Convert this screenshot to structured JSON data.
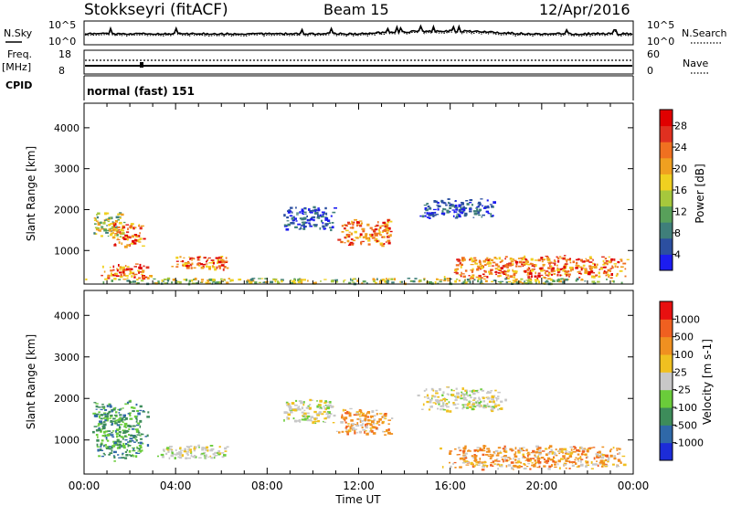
{
  "header": {
    "station": "Stokkseyri (fitACF)",
    "beam": "Beam 15",
    "date": "12/Apr/2016"
  },
  "strip": {
    "nsky_label": "N.Sky",
    "nsky_ticks": [
      "10^5",
      "10^0"
    ],
    "nsearch_label": "N.Search",
    "nsearch_ticks": [
      "10^5",
      "10^0"
    ],
    "freq_label": "Freq.",
    "freq_unit": "[MHz]",
    "freq_ticks": [
      "18",
      "8"
    ],
    "nave_label": "Nave",
    "nave_ticks": [
      "60",
      "0"
    ],
    "cpid_label": "CPID",
    "cpid_text": "normal (fast) 151"
  },
  "time_axis": {
    "title": "Time UT",
    "ticks": [
      "00:00",
      "04:00",
      "08:00",
      "12:00",
      "16:00",
      "20:00",
      "00:00"
    ]
  },
  "chart_data": [
    {
      "type": "heatmap",
      "name": "power",
      "ylabel": "Slant Range [km]",
      "ylim": [
        180,
        4600
      ],
      "yticks": [
        "4000",
        "3000",
        "2000",
        "1000"
      ],
      "colorbar_label": "Power [dB]",
      "colorbar_ticks": [
        "28",
        "24",
        "20",
        "16",
        "12",
        "8",
        "4"
      ],
      "colorscale": [
        "#1c1cf0",
        "#2c4fa0",
        "#3f7f7a",
        "#58a05a",
        "#a6c83c",
        "#f0d020",
        "#f0a020",
        "#f07020",
        "#e03020",
        "#e00000"
      ],
      "echo_regions": [
        {
          "t0": 0.3,
          "t1": 1.8,
          "r0": 1300,
          "r1": 2000,
          "level": "mid"
        },
        {
          "t0": 1.2,
          "t1": 2.7,
          "r0": 1100,
          "r1": 1700,
          "level": "high"
        },
        {
          "t0": 0.6,
          "t1": 3.0,
          "r0": 300,
          "r1": 700,
          "level": "high"
        },
        {
          "t0": 3.6,
          "t1": 6.5,
          "r0": 550,
          "r1": 900,
          "level": "high"
        },
        {
          "t0": 8.5,
          "t1": 11.0,
          "r0": 1500,
          "r1": 2100,
          "level": "low"
        },
        {
          "t0": 11.0,
          "t1": 13.5,
          "r0": 1100,
          "r1": 1800,
          "level": "high"
        },
        {
          "t0": 14.5,
          "t1": 18.0,
          "r0": 1800,
          "r1": 2300,
          "level": "low"
        },
        {
          "t0": 15.5,
          "t1": 24.0,
          "r0": 300,
          "r1": 900,
          "level": "high"
        },
        {
          "t0": 0.0,
          "t1": 24.0,
          "r0": 200,
          "r1": 350,
          "level": "mid"
        }
      ]
    },
    {
      "type": "heatmap",
      "name": "velocity",
      "ylabel": "Slant Range [km]",
      "ylim": [
        180,
        4600
      ],
      "yticks": [
        "4000",
        "3000",
        "2000",
        "1000"
      ],
      "colorbar_label": "Velocity [m s-1]",
      "colorbar_ticks": [
        "1000",
        "500",
        "100",
        "25",
        "-25",
        "-100",
        "-500",
        "-1000"
      ],
      "colorscale": [
        "#1c2cd8",
        "#2f68a8",
        "#3d8c5a",
        "#6acc3a",
        "#c8c8c8",
        "#f0c020",
        "#f09020",
        "#f06020",
        "#e81010"
      ],
      "echo_regions": [
        {
          "t0": 0.3,
          "t1": 2.8,
          "r0": 500,
          "r1": 2000,
          "level": "toward"
        },
        {
          "t0": 3.0,
          "t1": 6.5,
          "r0": 550,
          "r1": 900,
          "level": "zero"
        },
        {
          "t0": 8.5,
          "t1": 11.0,
          "r0": 1400,
          "r1": 2000,
          "level": "zero"
        },
        {
          "t0": 11.0,
          "t1": 13.5,
          "r0": 1100,
          "r1": 1800,
          "level": "away"
        },
        {
          "t0": 14.5,
          "t1": 18.5,
          "r0": 1700,
          "r1": 2300,
          "level": "zero"
        },
        {
          "t0": 15.5,
          "t1": 24.0,
          "r0": 300,
          "r1": 900,
          "level": "away"
        }
      ]
    }
  ]
}
